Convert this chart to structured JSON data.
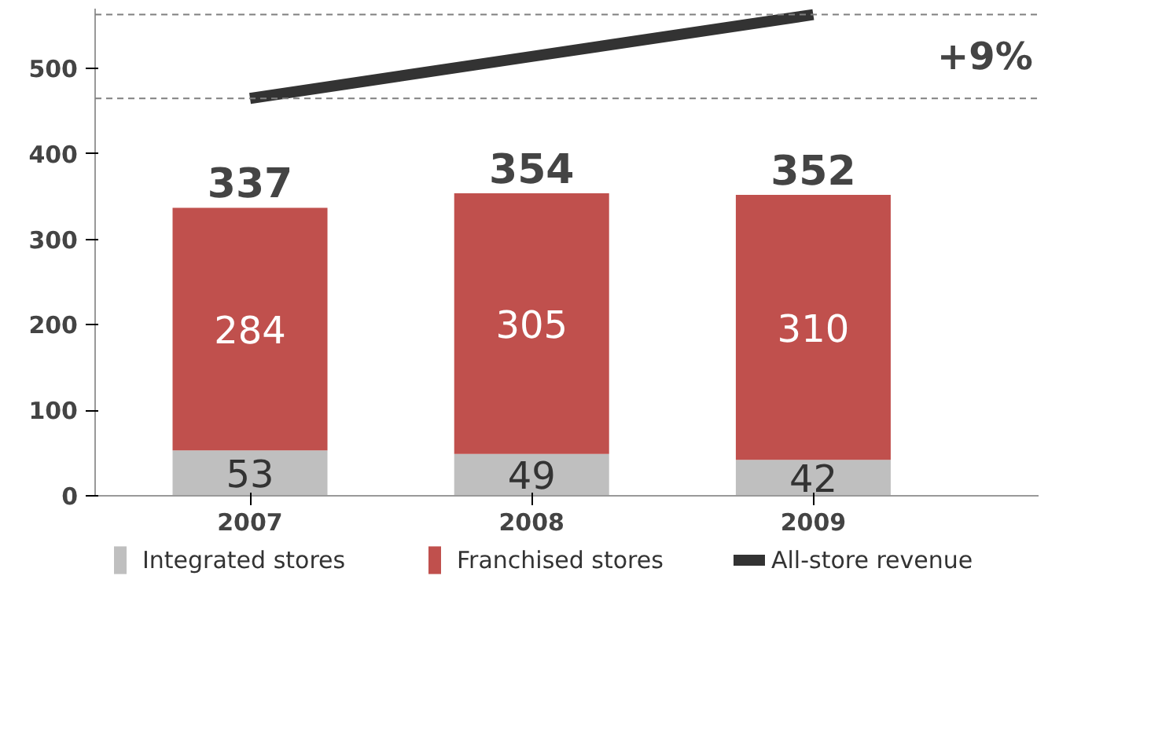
{
  "chart_data": {
    "type": "bar",
    "stacked": true,
    "categories": [
      "2007",
      "2008",
      "2009"
    ],
    "series": [
      {
        "name": "Integrated stores",
        "color": "#bfbfbf",
        "values": [
          53,
          49,
          42
        ],
        "value_labels": [
          "53",
          "49",
          "42"
        ]
      },
      {
        "name": "Franchised stores",
        "color": "#c0504d",
        "values": [
          284,
          305,
          310
        ],
        "value_labels": [
          "284",
          "305",
          "310"
        ]
      },
      {
        "name": "All-store revenue",
        "type": "line",
        "color": "#333333",
        "values": [
          465,
          514,
          563
        ]
      }
    ],
    "totals": [
      "337",
      "354",
      "352"
    ],
    "ylim": [
      0,
      570
    ],
    "yticks": [
      0,
      100,
      200,
      300,
      400,
      500
    ],
    "ref_lines": [
      {
        "axis": "y",
        "value": 465,
        "color": "#808080",
        "line_style": "dashed"
      },
      {
        "axis": "y",
        "value": 563,
        "color": "#808080",
        "line_style": "dashed"
      }
    ],
    "annotations": [
      "+9%"
    ],
    "legend": "bottom",
    "grid": false
  }
}
